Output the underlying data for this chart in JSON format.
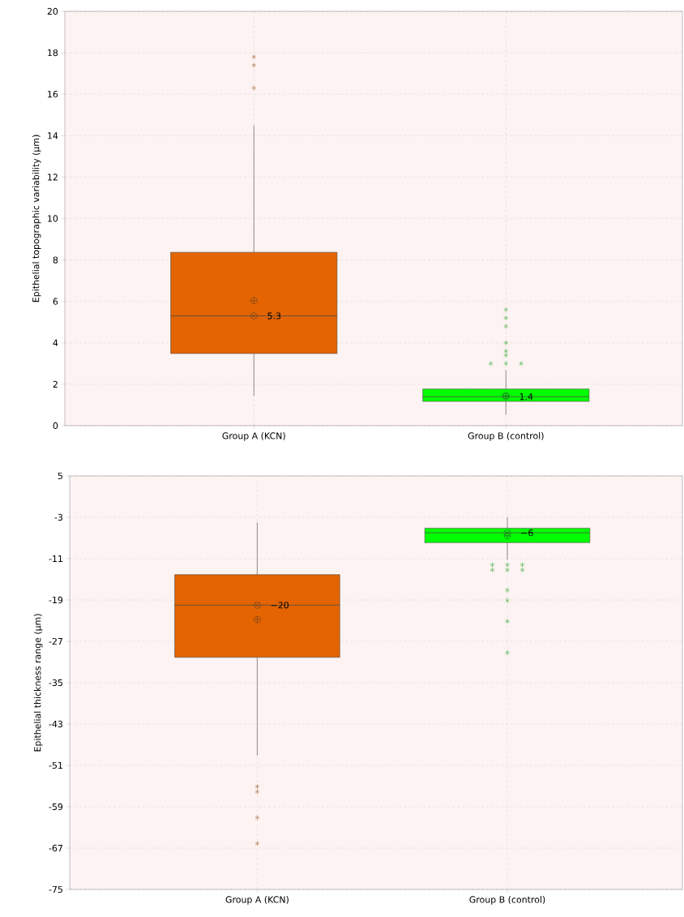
{
  "chart_data": [
    {
      "type": "box",
      "ylabel": "Epithelial topographic variability (µm)",
      "categories": [
        "Group A (KCN)",
        "Group B (control)"
      ],
      "colors": [
        "#e36400",
        "#00ff00"
      ],
      "boxes": [
        {
          "low": 1.44,
          "q1": 3.48,
          "median": 5.3,
          "q3": 8.37,
          "high": 14.5,
          "mean": 6.04,
          "outliers": [
            17.8,
            17.4,
            16.3
          ]
        },
        {
          "low": 0.54,
          "q1": 1.17,
          "median": 1.4,
          "q3": 1.77,
          "high": 2.67,
          "mean": 1.45,
          "outliers": [
            5.6,
            5.2,
            4.8,
            4.0,
            3.6,
            3.4,
            3.0,
            3.0,
            3.0
          ]
        }
      ],
      "ylim": [
        0,
        20
      ],
      "yticks": [
        0,
        2,
        4,
        6,
        8,
        10,
        12,
        14,
        16,
        18,
        20
      ],
      "grid": true,
      "series": [
        {
          "type": "scatter",
          "x": [
            "Group A (KCN)",
            "Group B (control)"
          ],
          "values": [
            5.3,
            1.4
          ],
          "color": "#333333",
          "marker": "cross"
        }
      ],
      "annotations": [
        {
          "text": "5.3",
          "x": "Group A (KCN)",
          "y": 5.3
        },
        {
          "text": "1.4",
          "x": "Group B (control)",
          "y": 1.4
        }
      ]
    },
    {
      "type": "box",
      "ylabel": "Epithelial thickness range (µm)",
      "categories": [
        "Group A (KCN)",
        "Group B (control)"
      ],
      "colors": [
        "#e36400",
        "#00ff00"
      ],
      "boxes": [
        {
          "low": -49.1,
          "q1": -30.1,
          "median": -20,
          "q3": -14.1,
          "high": -4.0,
          "mean": -22.8,
          "outliers": [
            -55.1,
            -56.1,
            -61.1,
            -66.1
          ]
        },
        {
          "low": -11.2,
          "q1": -7.9,
          "median": -6,
          "q3": -5.1,
          "high": -3.0,
          "mean": -6.6,
          "outliers": [
            -12.2,
            -12.2,
            -12.2,
            -13.2,
            -13.2,
            -13.2,
            -17.1,
            -19.1,
            -23.1,
            -29.2
          ]
        }
      ],
      "ylim": [
        -75,
        5
      ],
      "yticks": [
        -75,
        -67,
        -59,
        -51,
        -43,
        -35,
        -27,
        -19,
        -11,
        -3,
        5
      ],
      "grid": true,
      "series": [
        {
          "type": "scatter",
          "x": [
            "Group A (KCN)",
            "Group B (control)"
          ],
          "values": [
            -20,
            -6
          ],
          "color": "#333333",
          "marker": "cross"
        }
      ],
      "annotations": [
        {
          "text": "−20",
          "x": "Group A (KCN)",
          "y": -20
        },
        {
          "text": "−6",
          "x": "Group B (control)",
          "y": -6
        }
      ]
    }
  ]
}
